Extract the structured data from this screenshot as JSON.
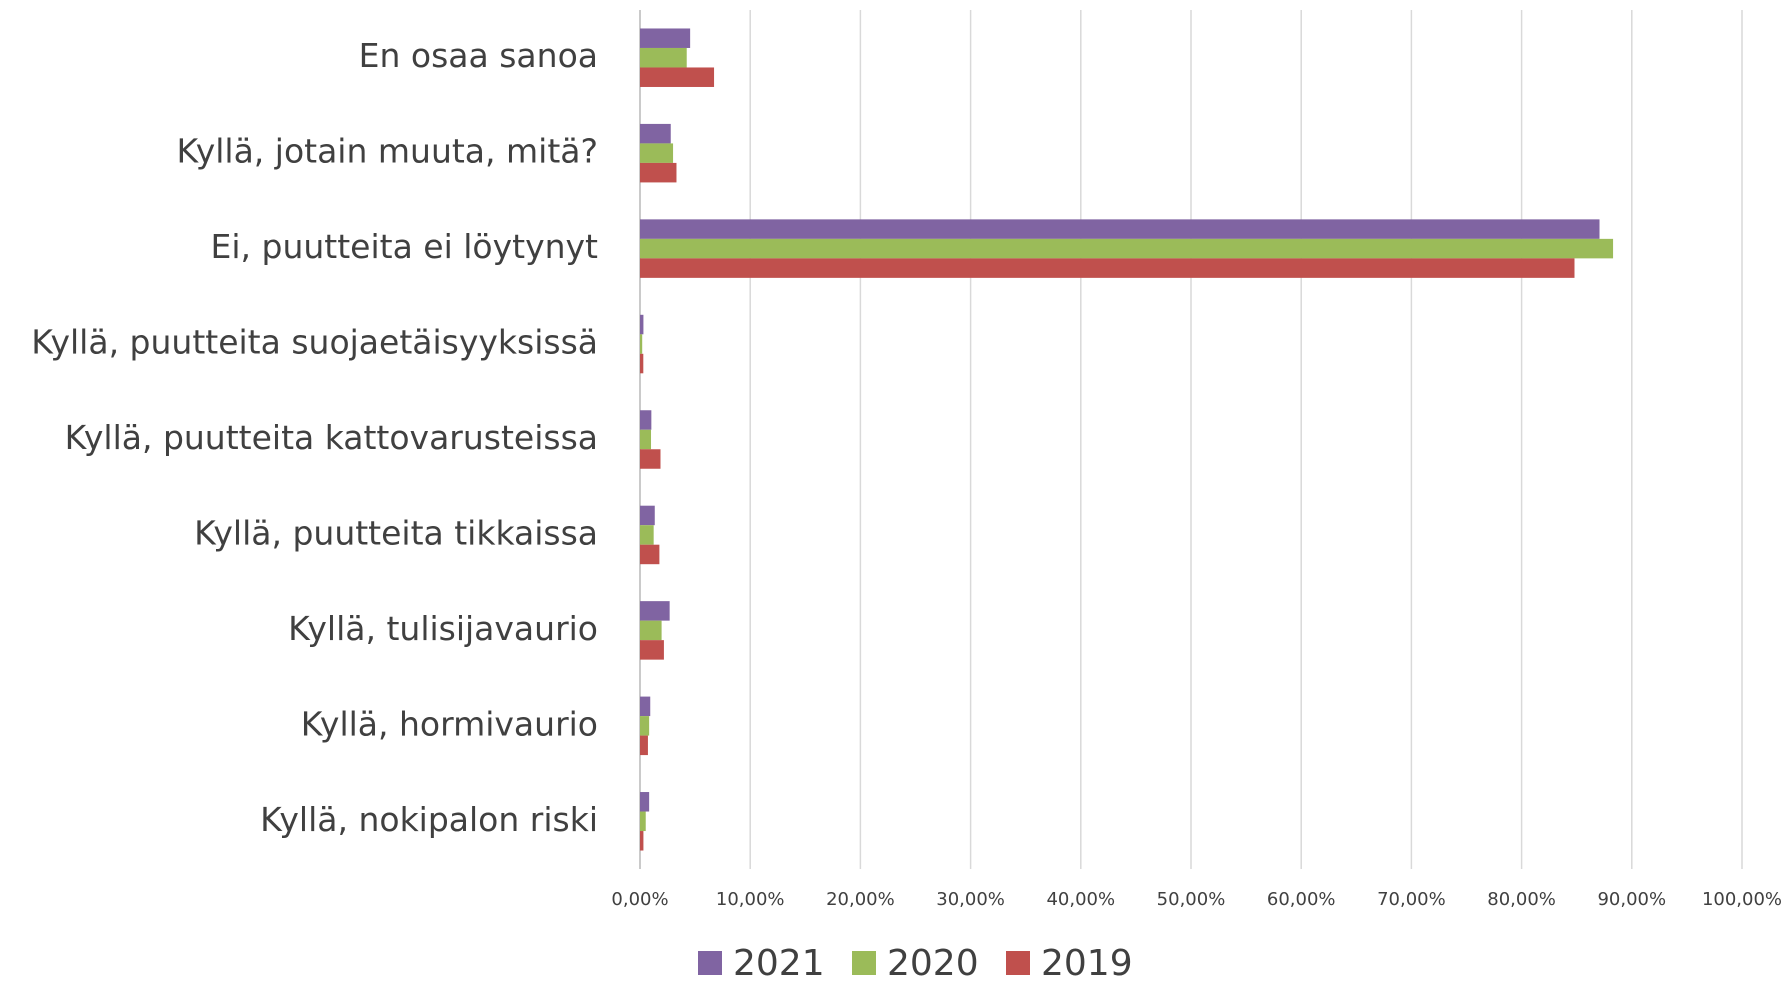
{
  "chart_data": {
    "type": "hbar",
    "categories": [
      "En osaa sanoa",
      "Kyllä, jotain muuta, mitä?",
      "Ei, puutteita ei löytynyt",
      "Kyllä, puutteita suojaetäisyyksissä",
      "Kyllä, puutteita kattovarusteissa",
      "Kyllä, puutteita tikkaissa",
      "Kyllä, tulisijavaurio",
      "Kyllä, hormivaurio",
      "Kyllä, nokipalon riski"
    ],
    "series": [
      {
        "name": "2021",
        "color": "#8064a2",
        "values": [
          4.55,
          2.79,
          87.07,
          0.31,
          1.03,
          1.34,
          2.69,
          0.93,
          0.83
        ]
      },
      {
        "name": "2020",
        "color": "#9bbb59",
        "values": [
          4.24,
          3.0,
          88.3,
          0.2,
          1.0,
          1.24,
          1.96,
          0.83,
          0.52
        ]
      },
      {
        "name": "2019",
        "color": "#c0504d",
        "values": [
          6.72,
          3.31,
          84.8,
          0.3,
          1.86,
          1.76,
          2.17,
          0.72,
          0.31
        ]
      }
    ],
    "xlim": [
      0,
      100
    ],
    "xticks": [
      {
        "value": 0,
        "label": "0,00%"
      },
      {
        "value": 10,
        "label": "10,00%"
      },
      {
        "value": 20,
        "label": "20,00%"
      },
      {
        "value": 30,
        "label": "30,00%"
      },
      {
        "value": 40,
        "label": "40,00%"
      },
      {
        "value": 50,
        "label": "50,00%"
      },
      {
        "value": 60,
        "label": "60,00%"
      },
      {
        "value": 70,
        "label": "70,00%"
      },
      {
        "value": 80,
        "label": "80,00%"
      },
      {
        "value": 90,
        "label": "90,00%"
      },
      {
        "value": 100,
        "label": "100,00%"
      }
    ],
    "grid": true,
    "legend": "bottom"
  }
}
